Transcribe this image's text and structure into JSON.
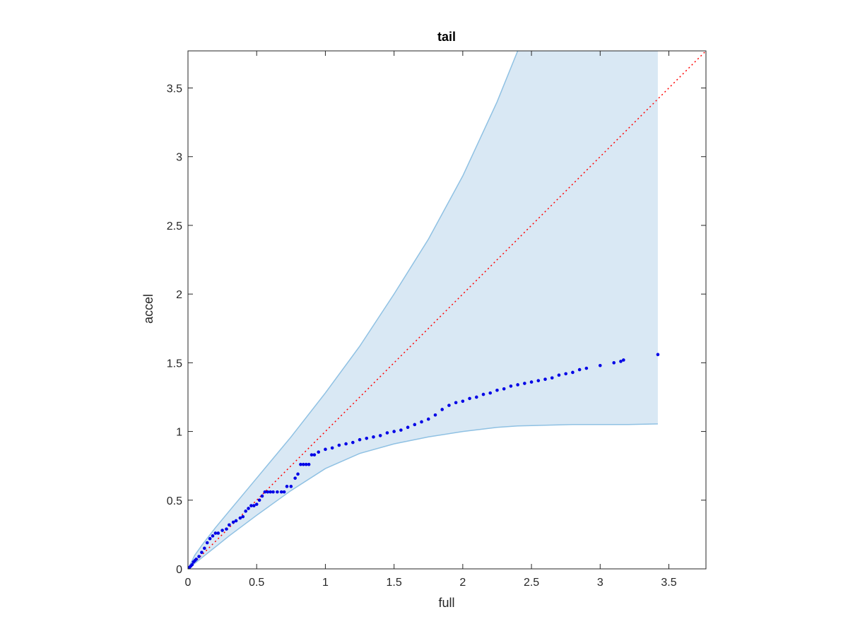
{
  "chart_data": {
    "type": "scatter",
    "title": "tail",
    "xlabel": "full",
    "ylabel": "accel",
    "xlim": [
      0,
      3.77
    ],
    "ylim": [
      0,
      3.77
    ],
    "xticks": [
      "0",
      "0.5",
      "1",
      "1.5",
      "2",
      "2.5",
      "3",
      "3.5"
    ],
    "yticks": [
      "0",
      "0.5",
      "1",
      "1.5",
      "2",
      "2.5",
      "3",
      "3.5"
    ],
    "tick_values": [
      0,
      0.5,
      1,
      1.5,
      2,
      2.5,
      3,
      3.5
    ],
    "grid": false,
    "colors": {
      "band_fill": "#d9e8f4",
      "band_edge": "#8fc1e3",
      "points": "#0000e6",
      "reference": "#ff0000",
      "axes": "#262626"
    },
    "band": {
      "x": [
        0,
        0.05,
        0.1,
        0.2,
        0.3,
        0.5,
        0.75,
        1.0,
        1.25,
        1.5,
        1.75,
        2.0,
        2.25,
        2.4,
        2.6,
        2.8,
        3.0,
        3.2,
        3.42
      ],
      "upper": [
        0,
        0.1,
        0.17,
        0.3,
        0.42,
        0.66,
        0.96,
        1.28,
        1.62,
        2.0,
        2.4,
        2.86,
        3.4,
        3.77,
        3.77,
        3.77,
        3.77,
        3.77,
        3.77
      ],
      "lower": [
        0,
        0.04,
        0.08,
        0.16,
        0.24,
        0.39,
        0.57,
        0.73,
        0.84,
        0.91,
        0.96,
        1.0,
        1.03,
        1.04,
        1.045,
        1.05,
        1.05,
        1.05,
        1.055
      ]
    },
    "reference_line": {
      "x": [
        0,
        3.77
      ],
      "y": [
        0,
        3.77
      ],
      "style": "dotted"
    },
    "points": {
      "x": [
        0.01,
        0.02,
        0.03,
        0.04,
        0.05,
        0.06,
        0.08,
        0.1,
        0.12,
        0.14,
        0.16,
        0.18,
        0.2,
        0.22,
        0.25,
        0.28,
        0.3,
        0.33,
        0.35,
        0.38,
        0.4,
        0.42,
        0.44,
        0.46,
        0.48,
        0.5,
        0.52,
        0.54,
        0.56,
        0.58,
        0.6,
        0.62,
        0.65,
        0.68,
        0.7,
        0.72,
        0.75,
        0.78,
        0.8,
        0.82,
        0.84,
        0.86,
        0.88,
        0.9,
        0.92,
        0.95,
        1.0,
        1.05,
        1.1,
        1.15,
        1.2,
        1.25,
        1.3,
        1.35,
        1.4,
        1.45,
        1.5,
        1.55,
        1.6,
        1.65,
        1.7,
        1.75,
        1.8,
        1.85,
        1.9,
        1.95,
        2.0,
        2.05,
        2.1,
        2.15,
        2.2,
        2.25,
        2.3,
        2.35,
        2.4,
        2.45,
        2.5,
        2.55,
        2.6,
        2.65,
        2.7,
        2.75,
        2.8,
        2.85,
        2.9,
        3.0,
        3.1,
        3.15,
        3.17,
        3.42
      ],
      "y": [
        0.01,
        0.02,
        0.03,
        0.05,
        0.06,
        0.07,
        0.09,
        0.12,
        0.15,
        0.19,
        0.22,
        0.24,
        0.26,
        0.26,
        0.28,
        0.29,
        0.32,
        0.34,
        0.35,
        0.37,
        0.38,
        0.42,
        0.44,
        0.46,
        0.46,
        0.47,
        0.5,
        0.53,
        0.56,
        0.56,
        0.56,
        0.56,
        0.56,
        0.56,
        0.56,
        0.6,
        0.6,
        0.66,
        0.69,
        0.76,
        0.76,
        0.76,
        0.76,
        0.83,
        0.83,
        0.85,
        0.87,
        0.88,
        0.9,
        0.91,
        0.92,
        0.94,
        0.95,
        0.96,
        0.97,
        0.99,
        1.0,
        1.01,
        1.03,
        1.05,
        1.07,
        1.09,
        1.12,
        1.16,
        1.19,
        1.21,
        1.22,
        1.24,
        1.25,
        1.27,
        1.28,
        1.3,
        1.31,
        1.33,
        1.34,
        1.35,
        1.36,
        1.37,
        1.38,
        1.39,
        1.41,
        1.42,
        1.43,
        1.45,
        1.46,
        1.48,
        1.5,
        1.51,
        1.52,
        1.56
      ]
    }
  }
}
